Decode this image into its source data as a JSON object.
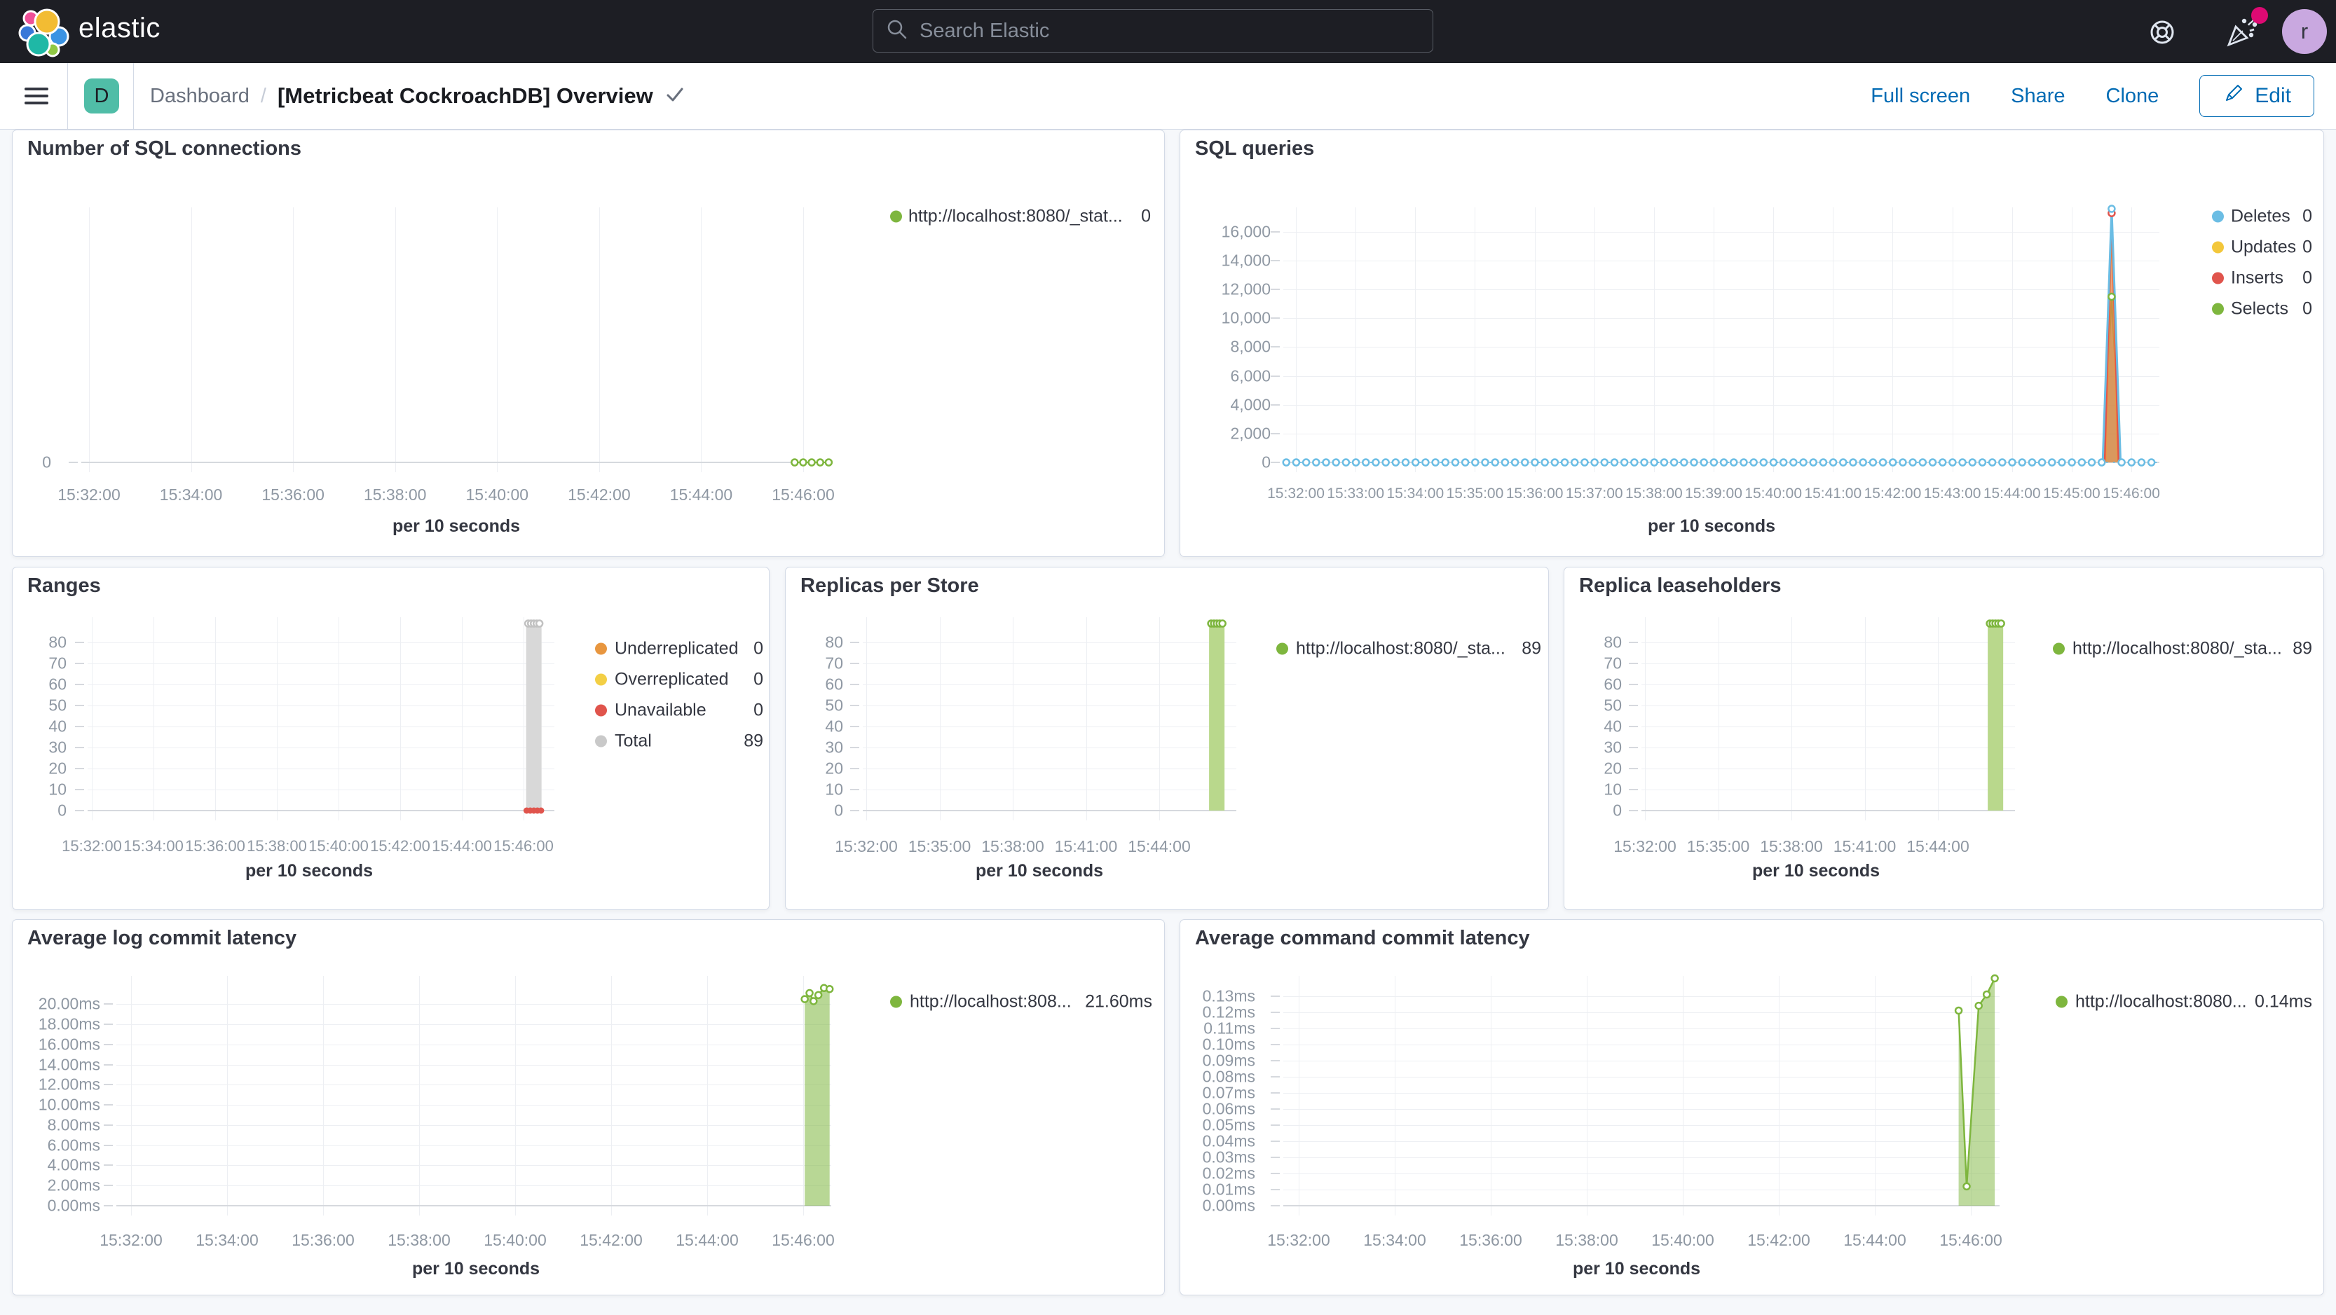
{
  "colors": {
    "topbar_bg": "#1d1e24",
    "page_bg": "#f6f8fb",
    "panel_border": "#d3dae6",
    "accent_blue": "#006bb4",
    "badge_teal": "#50bda7",
    "avatar_purple": "#c9a8e0",
    "notification_pink": "#dd0a73",
    "series_green": "#7eb63e",
    "series_blue": "#6bbde4",
    "series_yellow": "#f3c73b",
    "series_red": "#e0544c",
    "series_orange": "#e8963f",
    "series_gray": "#d8d8d8"
  },
  "topbar": {
    "brand": "elastic",
    "search_placeholder": "Search Elastic",
    "avatar_initial": "r"
  },
  "navbar": {
    "space_initial": "D",
    "breadcrumb_root": "Dashboard",
    "separator": "/",
    "title": "[Metricbeat CockroachDB] Overview",
    "actions": [
      "Full screen",
      "Share",
      "Clone"
    ],
    "edit_label": "Edit"
  },
  "panels": [
    {
      "title": "Number of SQL connections",
      "axis_note": "per 10 seconds",
      "y_ticks": [
        "0"
      ],
      "x_ticks": [
        "15:32:00",
        "15:34:00",
        "15:36:00",
        "15:38:00",
        "15:40:00",
        "15:42:00",
        "15:44:00",
        "15:46:00"
      ],
      "legend": [
        {
          "label": "http://localhost:8080/_stat...",
          "value": "0",
          "color": "#7eb63e"
        }
      ]
    },
    {
      "title": "SQL queries",
      "axis_note": "per 10 seconds",
      "y_ticks": [
        "16,000",
        "14,000",
        "12,000",
        "10,000",
        "8,000",
        "6,000",
        "4,000",
        "2,000",
        "0"
      ],
      "x_ticks": [
        "15:32:00",
        "15:33:00",
        "15:34:00",
        "15:35:00",
        "15:36:00",
        "15:37:00",
        "15:38:00",
        "15:39:00",
        "15:40:00",
        "15:41:00",
        "15:42:00",
        "15:43:00",
        "15:44:00",
        "15:45:00",
        "15:46:00"
      ],
      "legend": [
        {
          "label": "Deletes",
          "value": "0",
          "color": "#6bbde4"
        },
        {
          "label": "Updates",
          "value": "0",
          "color": "#f3c73b"
        },
        {
          "label": "Inserts",
          "value": "0",
          "color": "#e0544c"
        },
        {
          "label": "Selects",
          "value": "0",
          "color": "#7eb63e"
        }
      ]
    },
    {
      "title": "Ranges",
      "axis_note": "per 10 seconds",
      "y_ticks": [
        "80",
        "70",
        "60",
        "50",
        "40",
        "30",
        "20",
        "10",
        "0"
      ],
      "x_ticks": [
        "15:32:00",
        "15:34:00",
        "15:36:00",
        "15:38:00",
        "15:40:00",
        "15:42:00",
        "15:44:00",
        "15:46:00"
      ],
      "legend": [
        {
          "label": "Underreplicated",
          "value": "0",
          "color": "#e8963f"
        },
        {
          "label": "Overreplicated",
          "value": "0",
          "color": "#f3cf45"
        },
        {
          "label": "Unavailable",
          "value": "0",
          "color": "#e0544c"
        },
        {
          "label": "Total",
          "value": "89",
          "color": "#c9c9c9"
        }
      ]
    },
    {
      "title": "Replicas per Store",
      "axis_note": "per 10 seconds",
      "y_ticks": [
        "80",
        "70",
        "60",
        "50",
        "40",
        "30",
        "20",
        "10",
        "0"
      ],
      "x_ticks": [
        "15:32:00",
        "15:35:00",
        "15:38:00",
        "15:41:00",
        "15:44:00"
      ],
      "legend": [
        {
          "label": "http://localhost:8080/_sta...",
          "value": "89",
          "color": "#7eb63e"
        }
      ]
    },
    {
      "title": "Replica leaseholders",
      "axis_note": "per 10 seconds",
      "y_ticks": [
        "80",
        "70",
        "60",
        "50",
        "40",
        "30",
        "20",
        "10",
        "0"
      ],
      "x_ticks": [
        "15:32:00",
        "15:35:00",
        "15:38:00",
        "15:41:00",
        "15:44:00"
      ],
      "legend": [
        {
          "label": "http://localhost:8080/_sta...",
          "value": "89",
          "color": "#7eb63e"
        }
      ]
    },
    {
      "title": "Average log commit latency",
      "axis_note": "per 10 seconds",
      "y_ticks": [
        "20.00ms",
        "18.00ms",
        "16.00ms",
        "14.00ms",
        "12.00ms",
        "10.00ms",
        "8.00ms",
        "6.00ms",
        "4.00ms",
        "2.00ms",
        "0.00ms"
      ],
      "x_ticks": [
        "15:32:00",
        "15:34:00",
        "15:36:00",
        "15:38:00",
        "15:40:00",
        "15:42:00",
        "15:44:00",
        "15:46:00"
      ],
      "legend": [
        {
          "label": "http://localhost:808...",
          "value": "21.60ms",
          "color": "#7eb63e"
        }
      ]
    },
    {
      "title": "Average command commit latency",
      "axis_note": "per 10 seconds",
      "y_ticks": [
        "0.13ms",
        "0.12ms",
        "0.11ms",
        "0.10ms",
        "0.09ms",
        "0.08ms",
        "0.07ms",
        "0.06ms",
        "0.05ms",
        "0.04ms",
        "0.03ms",
        "0.02ms",
        "0.01ms",
        "0.00ms"
      ],
      "x_ticks": [
        "15:32:00",
        "15:34:00",
        "15:36:00",
        "15:38:00",
        "15:40:00",
        "15:42:00",
        "15:44:00",
        "15:46:00"
      ],
      "legend": [
        {
          "label": "http://localhost:8080...",
          "value": "0.14ms",
          "color": "#7eb63e"
        }
      ]
    }
  ],
  "chart_data": [
    {
      "type": "line",
      "title": "Number of SQL connections",
      "xlabel": "per 10 seconds",
      "ylim": [
        0,
        1
      ],
      "ytick_values": [
        0
      ],
      "grid": true,
      "legend_position": "right",
      "series": [
        {
          "name": "http://localhost:8080/_stat...",
          "legend_value": "0",
          "color": "#7eb63e",
          "style": "line-markers",
          "points": [
            [
              "15:45:50",
              0
            ],
            [
              "15:46:00",
              0
            ],
            [
              "15:46:10",
              0
            ],
            [
              "15:46:20",
              0
            ],
            [
              "15:46:30",
              0
            ]
          ]
        }
      ]
    },
    {
      "type": "area",
      "title": "SQL queries",
      "xlabel": "per 10 seconds",
      "ylim": [
        0,
        17700
      ],
      "ytick_values": [
        16000,
        14000,
        12000,
        10000,
        8000,
        6000,
        4000,
        2000,
        0
      ],
      "grid": true,
      "legend_position": "right",
      "series": [
        {
          "name": "Selects",
          "legend_value": "0",
          "color": "#7eb63e",
          "style": "area",
          "fill_opacity": 0.55,
          "points": [
            [
              "15:45:31",
              0
            ],
            [
              "15:45:40",
              11500
            ],
            [
              "15:45:49",
              0
            ]
          ],
          "markers": [
            [
              "15:45:40",
              11500
            ]
          ]
        },
        {
          "name": "Updates",
          "legend_value": "0",
          "color": "#f3c73b",
          "style": "area",
          "fill_opacity": 0.45,
          "points": [
            [
              "15:45:34",
              0
            ],
            [
              "15:45:40",
              16900
            ],
            [
              "15:45:46",
              0
            ]
          ],
          "markers": []
        },
        {
          "name": "Inserts",
          "legend_value": "0",
          "color": "#e0544c",
          "style": "area",
          "fill_opacity": 0.45,
          "points": [
            [
              "15:45:33",
              0
            ],
            [
              "15:45:40",
              17300
            ],
            [
              "15:45:47",
              0
            ]
          ],
          "markers": [
            [
              "15:45:40",
              17300
            ]
          ]
        },
        {
          "name": "Deletes",
          "legend_value": "0",
          "color": "#6bbde4",
          "style": "dotline",
          "baseline": 0,
          "start": "15:31:50",
          "end": "15:46:26",
          "marker_step": 10,
          "spike": [
            [
              "15:45:31",
              0
            ],
            [
              "15:45:40",
              17600
            ],
            [
              "15:45:49",
              0
            ]
          ],
          "spike_marker": [
            "15:45:40",
            17600
          ]
        }
      ]
    },
    {
      "type": "bar",
      "title": "Ranges",
      "xlabel": "per 10 seconds",
      "ylim": [
        0,
        92
      ],
      "ytick_values": [
        80,
        70,
        60,
        50,
        40,
        30,
        20,
        10,
        0
      ],
      "grid": true,
      "legend_position": "right",
      "series": [
        {
          "name": "Total",
          "legend_value": "89",
          "color": "#d8d8d8",
          "style": "bar",
          "start": "15:46:05",
          "end": "15:46:35",
          "value": 89,
          "top_markers": 5,
          "marker_color": "#c2c2c2"
        },
        {
          "name": "Unavailable",
          "legend_value": "0",
          "color": "#e0544c",
          "style": "dots-filled",
          "value": 0,
          "times": [
            "15:46:06",
            "15:46:13",
            "15:46:20",
            "15:46:27",
            "15:46:34"
          ]
        }
      ]
    },
    {
      "type": "bar",
      "title": "Replicas per Store",
      "xlabel": "per 10 seconds",
      "ylim": [
        0,
        92
      ],
      "ytick_values": [
        80,
        70,
        60,
        50,
        40,
        30,
        20,
        10,
        0
      ],
      "grid": true,
      "legend_position": "right",
      "series": [
        {
          "name": "http://localhost:8080/_sta...",
          "legend_value": "89",
          "color": "#b9d88c",
          "style": "bar",
          "start": "15:46:02",
          "end": "15:46:40",
          "value": 89,
          "top_markers": 5,
          "marker_color": "#7eb63e"
        }
      ]
    },
    {
      "type": "bar",
      "title": "Replica leaseholders",
      "xlabel": "per 10 seconds",
      "ylim": [
        0,
        92
      ],
      "ytick_values": [
        80,
        70,
        60,
        50,
        40,
        30,
        20,
        10,
        0
      ],
      "grid": true,
      "legend_position": "right",
      "series": [
        {
          "name": "http://localhost:8080/_sta...",
          "legend_value": "89",
          "color": "#b9d88c",
          "style": "bar",
          "start": "15:46:02",
          "end": "15:46:40",
          "value": 89,
          "top_markers": 5,
          "marker_color": "#7eb63e"
        }
      ]
    },
    {
      "type": "area",
      "title": "Average log commit latency",
      "xlabel": "per 10 seconds",
      "ylim": [
        0,
        22.8
      ],
      "ytick_values": [
        20,
        18,
        16,
        14,
        12,
        10,
        8,
        6,
        4,
        2,
        0
      ],
      "grid": true,
      "legend_position": "right",
      "series": [
        {
          "name": "http://localhost:808...",
          "legend_value": "21.60ms",
          "color": "#7eb63e",
          "style": "area",
          "fill_opacity": 0.55,
          "points": [
            [
              "15:46:02",
              20.5
            ],
            [
              "15:46:08",
              21.1
            ],
            [
              "15:46:13",
              20.3
            ],
            [
              "15:46:19",
              20.9
            ],
            [
              "15:46:26",
              21.6
            ],
            [
              "15:46:33",
              21.5
            ]
          ],
          "markers": [
            [
              "15:46:02",
              20.5
            ],
            [
              "15:46:08",
              21.1
            ],
            [
              "15:46:13",
              20.3
            ],
            [
              "15:46:19",
              20.9
            ],
            [
              "15:46:26",
              21.6
            ],
            [
              "15:46:33",
              21.5
            ]
          ]
        }
      ]
    },
    {
      "type": "area",
      "title": "Average command commit latency",
      "xlabel": "per 10 seconds",
      "ylim": [
        0,
        0.1425
      ],
      "ytick_values": [
        0.13,
        0.12,
        0.11,
        0.1,
        0.09,
        0.08,
        0.07,
        0.06,
        0.05,
        0.04,
        0.03,
        0.02,
        0.01,
        0
      ],
      "grid": true,
      "legend_position": "right",
      "series": [
        {
          "name": "http://localhost:8080...",
          "legend_value": "0.14ms",
          "color": "#7eb63e",
          "style": "area",
          "fill_opacity": 0.5,
          "points": [
            [
              "15:45:45",
              0.121
            ],
            [
              "15:45:55",
              0.012
            ],
            [
              "15:46:10",
              0.124
            ],
            [
              "15:46:20",
              0.131
            ],
            [
              "15:46:30",
              0.141
            ]
          ],
          "markers": [
            [
              "15:45:45",
              0.121
            ],
            [
              "15:45:55",
              0.012
            ],
            [
              "15:46:10",
              0.124
            ],
            [
              "15:46:20",
              0.131
            ],
            [
              "15:46:30",
              0.141
            ]
          ]
        }
      ]
    }
  ]
}
